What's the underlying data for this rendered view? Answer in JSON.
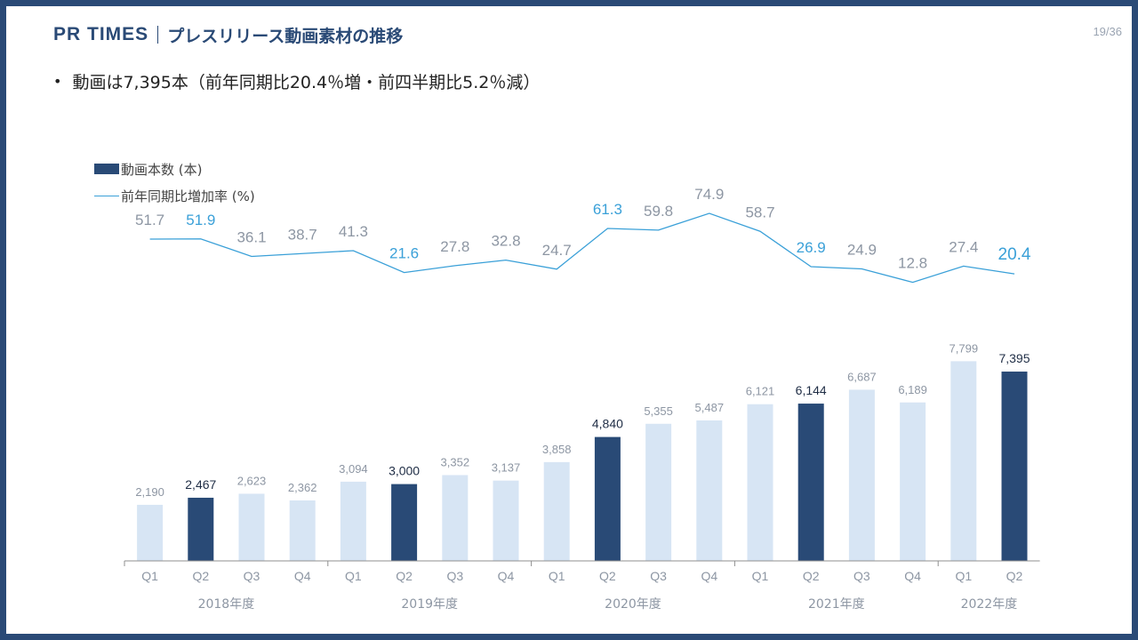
{
  "header": {
    "brand": "PR TIMES",
    "title": "プレスリリース動画素材の推移",
    "page": "19/36"
  },
  "bullet": "動画は7,395本（前年同期比20.4％増・前四半期比5.2％減）",
  "colors": {
    "frame": "#2a4a76",
    "bar_dark": "#294a76",
    "bar_light": "#d7e5f4",
    "line": "#3aa0d8",
    "label_highlight": "#3aa0d8",
    "label_muted": "#8d96a3"
  },
  "chart_data": {
    "type": "bar",
    "categories": [
      "Q1",
      "Q2",
      "Q3",
      "Q4",
      "Q1",
      "Q2",
      "Q3",
      "Q4",
      "Q1",
      "Q2",
      "Q3",
      "Q4",
      "Q1",
      "Q2",
      "Q3",
      "Q4",
      "Q1",
      "Q2"
    ],
    "year_groups": [
      {
        "label": "2018年度",
        "quarters": 4
      },
      {
        "label": "2019年度",
        "quarters": 4
      },
      {
        "label": "2020年度",
        "quarters": 4
      },
      {
        "label": "2021年度",
        "quarters": 4
      },
      {
        "label": "2022年度",
        "quarters": 2
      }
    ],
    "series": [
      {
        "name": "動画本数 (本)",
        "kind": "bar",
        "values": [
          2190,
          2467,
          2623,
          2362,
          3094,
          3000,
          3352,
          3137,
          3858,
          4840,
          5355,
          5487,
          6121,
          6144,
          6687,
          6189,
          7799,
          7395
        ],
        "labels": [
          "2,190",
          "2,467",
          "2,623",
          "2,362",
          "3,094",
          "3,000",
          "3,352",
          "3,137",
          "3,858",
          "4,840",
          "5,355",
          "5,487",
          "6,121",
          "6,144",
          "6,687",
          "6,189",
          "7,799",
          "7,395"
        ],
        "highlight": [
          false,
          true,
          false,
          false,
          false,
          true,
          false,
          false,
          false,
          true,
          false,
          false,
          false,
          true,
          false,
          false,
          false,
          true
        ]
      },
      {
        "name": "前年同期比増加率 (%)",
        "kind": "line",
        "values": [
          51.7,
          51.9,
          36.1,
          38.7,
          41.3,
          21.6,
          27.8,
          32.8,
          24.7,
          61.3,
          59.8,
          74.9,
          58.7,
          26.9,
          24.9,
          12.8,
          27.4,
          20.4
        ],
        "labels": [
          "51.7",
          "51.9",
          "36.1",
          "38.7",
          "41.3",
          "21.6",
          "27.8",
          "32.8",
          "24.7",
          "61.3",
          "59.8",
          "74.9",
          "58.7",
          "26.9",
          "24.9",
          "12.8",
          "27.4",
          "20.4"
        ]
      }
    ],
    "bar_ylim": [
      0,
      11000
    ],
    "line_ylim": [
      -90,
      85
    ],
    "grid": false
  }
}
